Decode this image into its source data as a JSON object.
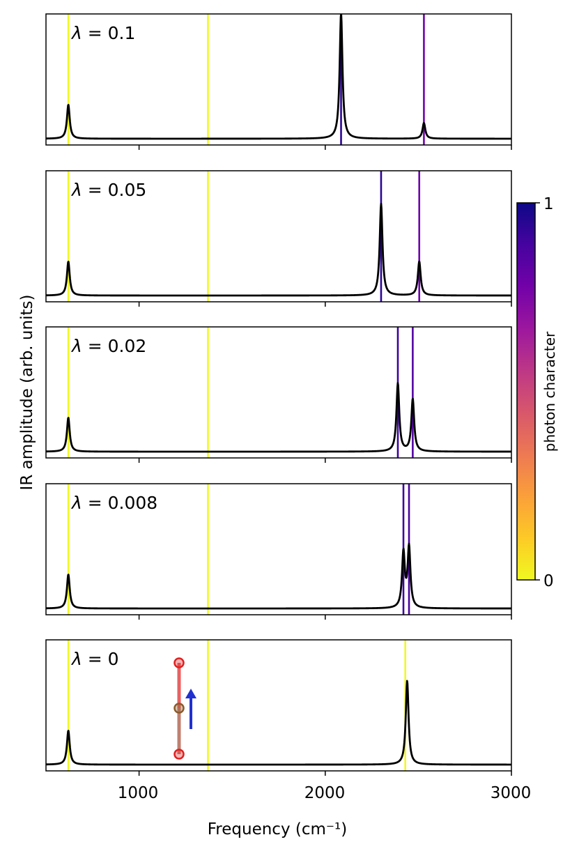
{
  "chart_data": {
    "type": "line",
    "xlabel": "Frequency (cm⁻¹)",
    "ylabel": "IR amplitude (arb. units)",
    "xlim": [
      500,
      3000
    ],
    "xticks": [
      1000,
      2000,
      3000
    ],
    "xtick_labels": [
      "1000",
      "2000",
      "3000"
    ],
    "colorbar": {
      "label": "photon character",
      "min_label": "0",
      "max_label": "1",
      "colormap": "plasma (reversed)",
      "stops": [
        "#f0f921",
        "#fdca26",
        "#fb9f3a",
        "#ed7953",
        "#d8576b",
        "#bd3786",
        "#9c179e",
        "#7201a8",
        "#46039f",
        "#0d0887"
      ]
    },
    "molecule": {
      "atoms": [
        "O",
        "C",
        "O"
      ],
      "atom_colors": [
        "#e02020",
        "#8b5a2b",
        "#e02020"
      ],
      "arrow_color": "#2030d0"
    },
    "panels": [
      {
        "label": "λ = 0.1",
        "lambda_text": "0.1",
        "peaks": [
          {
            "x": 620,
            "height": 0.26
          },
          {
            "x": 2085,
            "height": 0.96
          },
          {
            "x": 2530,
            "height": 0.12
          }
        ],
        "mode_lines": [
          {
            "x": 620,
            "color": "#f0f921"
          },
          {
            "x": 1370,
            "color": "#f0f921"
          },
          {
            "x": 2085,
            "color": "#2a0593"
          },
          {
            "x": 2530,
            "color": "#7201a8"
          }
        ]
      },
      {
        "label": "λ = 0.05",
        "lambda_text": "0.05",
        "peaks": [
          {
            "x": 620,
            "height": 0.26
          },
          {
            "x": 2300,
            "height": 0.7
          },
          {
            "x": 2505,
            "height": 0.26
          }
        ],
        "mode_lines": [
          {
            "x": 620,
            "color": "#f0f921"
          },
          {
            "x": 1370,
            "color": "#f0f921"
          },
          {
            "x": 2300,
            "color": "#2a0593"
          },
          {
            "x": 2505,
            "color": "#6a00a8"
          }
        ]
      },
      {
        "label": "λ = 0.02",
        "lambda_text": "0.02",
        "peaks": [
          {
            "x": 620,
            "height": 0.26
          },
          {
            "x": 2390,
            "height": 0.52
          },
          {
            "x": 2470,
            "height": 0.4
          }
        ],
        "mode_lines": [
          {
            "x": 620,
            "color": "#f0f921"
          },
          {
            "x": 1370,
            "color": "#f0f921"
          },
          {
            "x": 2390,
            "color": "#3c049b"
          },
          {
            "x": 2470,
            "color": "#5402a3"
          }
        ]
      },
      {
        "label": "λ = 0.008",
        "lambda_text": "0.008",
        "peaks": [
          {
            "x": 620,
            "height": 0.26
          },
          {
            "x": 2420,
            "height": 0.42
          },
          {
            "x": 2450,
            "height": 0.46
          }
        ],
        "mode_lines": [
          {
            "x": 620,
            "color": "#f0f921"
          },
          {
            "x": 1370,
            "color": "#f0f921"
          },
          {
            "x": 2420,
            "color": "#3c049b"
          },
          {
            "x": 2450,
            "color": "#4a02a0"
          }
        ]
      },
      {
        "label": "λ = 0",
        "lambda_text": "0",
        "peaks": [
          {
            "x": 620,
            "height": 0.26
          },
          {
            "x": 2440,
            "height": 0.64
          }
        ],
        "mode_lines": [
          {
            "x": 620,
            "color": "#f0f921"
          },
          {
            "x": 1370,
            "color": "#f0f921"
          },
          {
            "x": 2430,
            "color": "#f0f921"
          }
        ]
      }
    ]
  }
}
